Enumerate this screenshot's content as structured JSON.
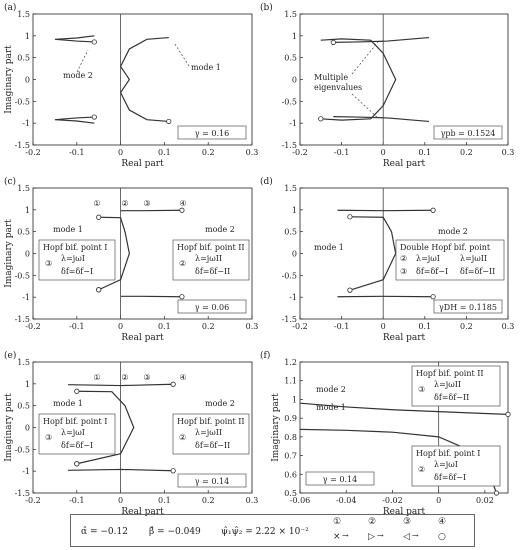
{
  "chart_data": [
    {
      "panel": "(a)",
      "type": "line",
      "xlabel": "Real part",
      "ylabel": "Imaginary part",
      "xlim": [
        -0.2,
        0.3
      ],
      "ylim": [
        -1.5,
        1.5
      ],
      "xticks": [
        "-0.2",
        "-0.1",
        "0",
        "0.1",
        "0.2",
        "0.3"
      ],
      "yticks": [
        "1.5",
        "1",
        "0.5",
        "0",
        "-0.5",
        "-1",
        "-1.5"
      ],
      "annotations": [
        "mode 2",
        "mode 1"
      ],
      "param": "γ = 0.16",
      "series": [
        {
          "name": "mode 2",
          "x": [
            -0.06,
            -0.1,
            -0.15,
            -0.1,
            -0.06
          ],
          "y": [
            1.0,
            0.95,
            0.92,
            0.88,
            0.86
          ]
        },
        {
          "name": "mode 1",
          "x": [
            0.11,
            0.06,
            0.02,
            0.0,
            0.02,
            0.0,
            0.02,
            0.06,
            0.11
          ],
          "y": [
            0.96,
            0.92,
            0.7,
            0.3,
            0.0,
            -0.3,
            -0.7,
            -0.92,
            -0.96
          ]
        }
      ]
    },
    {
      "panel": "(b)",
      "type": "line",
      "xlabel": "Real part",
      "ylabel": "",
      "xlim": [
        -0.2,
        0.3
      ],
      "ylim": [
        -1.5,
        1.5
      ],
      "xticks": [
        "-0.2",
        "-0.1",
        "0",
        "0.1",
        "0.2",
        "0.3"
      ],
      "yticks": [
        "1.5",
        "1",
        "0.5",
        "0",
        "-0.5",
        "-1",
        "-1.5"
      ],
      "annotations": [
        "Multiple eigenvalues"
      ],
      "param": "γpb = 0.1524",
      "series": [
        {
          "name": "",
          "x": [
            -0.15,
            -0.1,
            -0.03,
            0.0,
            0.03,
            0.0,
            -0.03,
            -0.1,
            -0.15
          ],
          "y": [
            0.9,
            0.93,
            0.9,
            0.6,
            0.0,
            -0.6,
            -0.9,
            -0.93,
            -0.9
          ]
        },
        {
          "name": "",
          "x": [
            0.11,
            0.06,
            0.01,
            -0.06,
            -0.12
          ],
          "y": [
            0.96,
            0.92,
            0.88,
            0.86,
            0.85
          ]
        }
      ]
    },
    {
      "panel": "(c)",
      "type": "line",
      "xlabel": "Real part",
      "ylabel": "Imaginary part",
      "xlim": [
        -0.2,
        0.3
      ],
      "ylim": [
        -1.5,
        1.5
      ],
      "xticks": [
        "-0.2",
        "-0.1",
        "0",
        "0.1",
        "0.2",
        "0.3"
      ],
      "yticks": [
        "1.5",
        "1",
        "0.5",
        "0",
        "-0.5",
        "-1",
        "-1.5"
      ],
      "annotations": [
        "mode 1",
        "mode 2",
        "Hopf bif. point I",
        "Hopf bif. point II"
      ],
      "param": "γ = 0.06",
      "series": [
        {
          "name": "mode 2",
          "x": [
            0.0,
            0.05,
            0.14
          ],
          "y": [
            0.98,
            0.98,
            0.99
          ]
        },
        {
          "name": "mode 1",
          "x": [
            -0.05,
            0.0,
            0.01,
            0.02,
            0.0,
            -0.05
          ],
          "y": [
            0.83,
            0.82,
            0.5,
            0.0,
            -0.6,
            -0.83
          ]
        },
        {
          "name": "",
          "x": [
            0.0,
            0.05,
            0.14
          ],
          "y": [
            -0.98,
            -0.98,
            -0.99
          ]
        }
      ]
    },
    {
      "panel": "(d)",
      "type": "line",
      "xlabel": "Real part",
      "ylabel": "",
      "xlim": [
        -0.2,
        0.3
      ],
      "ylim": [
        -1.5,
        1.5
      ],
      "xticks": [
        "-0.2",
        "-0.1",
        "0",
        "0.1",
        "0.2",
        "0.3"
      ],
      "yticks": [
        "1.5",
        "1",
        "0.5",
        "0",
        "-0.5",
        "-1",
        "-1.5"
      ],
      "annotations": [
        "mode 1",
        "mode 2",
        "Double Hopf bif. point"
      ],
      "param": "γDH = 0.1185",
      "series": [
        {
          "name": "mode 2",
          "x": [
            -0.11,
            0.0,
            0.12
          ],
          "y": [
            0.99,
            0.98,
            0.99
          ]
        },
        {
          "name": "mode 1",
          "x": [
            -0.08,
            0.0,
            0.02,
            0.03,
            0.0,
            -0.08
          ],
          "y": [
            0.84,
            0.83,
            0.5,
            0.0,
            -0.6,
            -0.84
          ]
        },
        {
          "name": "",
          "x": [
            -0.11,
            0.0,
            0.12
          ],
          "y": [
            -0.99,
            -0.98,
            -0.99
          ]
        }
      ]
    },
    {
      "panel": "(e)",
      "type": "line",
      "xlabel": "Real part",
      "ylabel": "Imaginary part",
      "xlim": [
        -0.2,
        0.3
      ],
      "ylim": [
        -1.5,
        1.5
      ],
      "xticks": [
        "-0.2",
        "-0.1",
        "0",
        "0.1",
        "0.2",
        "0.3"
      ],
      "yticks": [
        "1.5",
        "1",
        "0.5",
        "0",
        "-0.5",
        "-1",
        "-1.5"
      ],
      "annotations": [
        "mode 1",
        "mode 2",
        "Hopf bif. point I",
        "Hopf bif. point II"
      ],
      "param": "γ = 0.14",
      "series": [
        {
          "name": "mode 2",
          "x": [
            -0.12,
            0.0,
            0.12
          ],
          "y": [
            0.98,
            0.96,
            0.99
          ]
        },
        {
          "name": "mode 1",
          "x": [
            -0.1,
            -0.02,
            0.01,
            0.03,
            0.0,
            -0.1
          ],
          "y": [
            0.83,
            0.82,
            0.5,
            0.0,
            -0.6,
            -0.83
          ]
        },
        {
          "name": "",
          "x": [
            -0.12,
            0.0,
            0.12
          ],
          "y": [
            -0.98,
            -0.96,
            -0.99
          ]
        }
      ]
    },
    {
      "panel": "(f)",
      "type": "line",
      "xlabel": "Real part",
      "ylabel": "Imaginary part",
      "xlim": [
        -0.06,
        0.03
      ],
      "ylim": [
        0.5,
        1.2
      ],
      "xticks": [
        "-0.06",
        "-0.04",
        "-0.02",
        "0",
        "0.02"
      ],
      "yticks": [
        "1.2",
        "1.1",
        "1",
        "0.9",
        "0.8",
        "0.7",
        "0.6",
        "0.5"
      ],
      "annotations": [
        "mode 2",
        "mode 1",
        "Hopf bif. point II",
        "Hopf bif. point I"
      ],
      "param": "γ = 0.14",
      "series": [
        {
          "name": "mode 2",
          "x": [
            -0.06,
            -0.04,
            -0.02,
            0.0,
            0.02,
            0.03
          ],
          "y": [
            0.98,
            0.96,
            0.945,
            0.935,
            0.925,
            0.92
          ]
        },
        {
          "name": "mode 1",
          "x": [
            -0.06,
            -0.04,
            -0.02,
            0.0,
            0.015,
            0.022,
            0.025
          ],
          "y": [
            0.84,
            0.835,
            0.825,
            0.8,
            0.72,
            0.6,
            0.5
          ]
        }
      ]
    }
  ],
  "hopf_boxes": {
    "c1_title": "Hopf bif. point I",
    "c1_l1": "λ=jω",
    "c1_l1s": "I",
    "c1_l2": "δf=δf",
    "c1_l2s": "−I",
    "c2_title": "Hopf bif. point II",
    "c2_l1": "λ=jω",
    "c2_l1s": "II",
    "c2_l2": "δf=δf",
    "c2_l2s": "−II",
    "d_title": "Double Hopf bif. point",
    "num1": "①",
    "num2": "②",
    "num3": "③",
    "num4": "④"
  },
  "legend": {
    "alpha": "α̂ = −0.12",
    "beta": "β̂ = −0.049",
    "psi": "ψ̂₁ψ̂₂ = 2.22 × 10⁻²",
    "n1": "①",
    "n2": "②",
    "n3": "③",
    "n4": "④",
    "s1": "×",
    "s2": "▷",
    "s3": "◁",
    "s4": "○"
  }
}
